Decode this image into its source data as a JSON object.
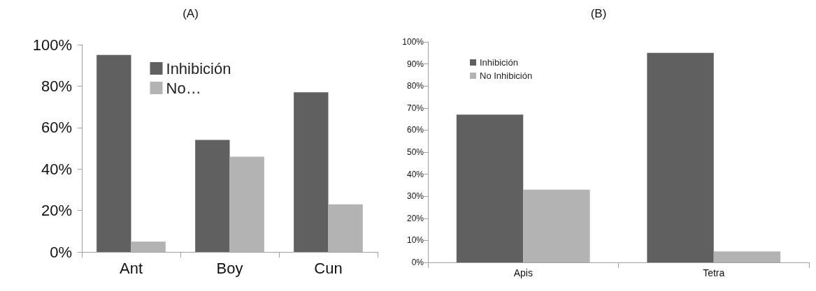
{
  "chart_data": [
    {
      "type": "bar",
      "title": "(A)",
      "categories": [
        "Ant",
        "Boy",
        "Cun"
      ],
      "series": [
        {
          "name": "Inhibición",
          "color": "#606060",
          "values": [
            95,
            54,
            77
          ]
        },
        {
          "name": "No…",
          "color": "#b3b3b3",
          "values": [
            5,
            46,
            23
          ]
        }
      ],
      "ylim": [
        0,
        100
      ],
      "yticks": [
        {
          "value": 0,
          "label": "0%"
        },
        {
          "value": 20,
          "label": "20%"
        },
        {
          "value": 40,
          "label": "40%"
        },
        {
          "value": 60,
          "label": "60%"
        },
        {
          "value": 80,
          "label": "80%"
        },
        {
          "value": 100,
          "label": "100%"
        }
      ],
      "grid": false,
      "legend": "top"
    },
    {
      "type": "bar",
      "title": "(B)",
      "categories": [
        "Apis",
        "Tetra"
      ],
      "series": [
        {
          "name": "Inhibición",
          "color": "#606060",
          "values": [
            67,
            95
          ]
        },
        {
          "name": "No Inhibición",
          "color": "#b3b3b3",
          "values": [
            33,
            5
          ]
        }
      ],
      "ylim": [
        0,
        100
      ],
      "yticks": [
        {
          "value": 0,
          "label": "0%"
        },
        {
          "value": 10,
          "label": "10%"
        },
        {
          "value": 20,
          "label": "20%"
        },
        {
          "value": 30,
          "label": "30%"
        },
        {
          "value": 40,
          "label": "40%"
        },
        {
          "value": 50,
          "label": "50%"
        },
        {
          "value": 60,
          "label": "60%"
        },
        {
          "value": 70,
          "label": "70%"
        },
        {
          "value": 80,
          "label": "80%"
        },
        {
          "value": 90,
          "label": "90%"
        },
        {
          "value": 100,
          "label": "100%"
        }
      ],
      "grid": false,
      "legend": "top left"
    }
  ]
}
